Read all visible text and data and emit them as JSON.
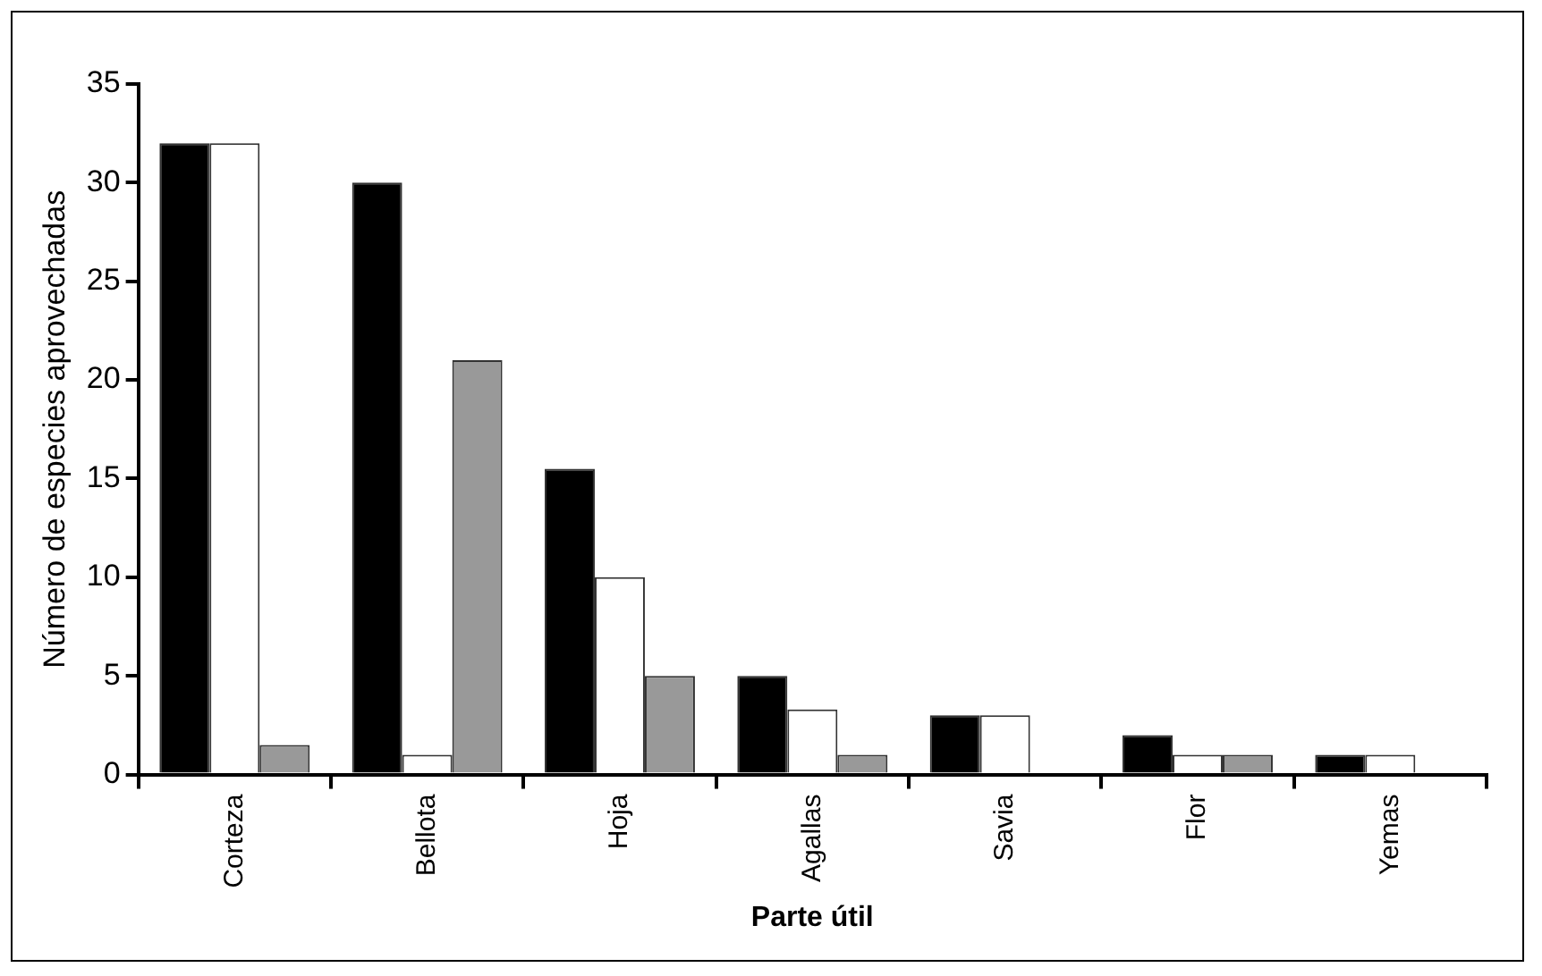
{
  "chart_data": {
    "type": "bar",
    "xlabel": "Parte útil",
    "ylabel": "Número de especies aprovechadas",
    "categories": [
      "Corteza",
      "Bellota",
      "Hoja",
      "Agallas",
      "Savia",
      "Flor",
      "Yemas"
    ],
    "series": [
      {
        "color": "#000000",
        "values": [
          32,
          30,
          15.5,
          5,
          3,
          2,
          1
        ]
      },
      {
        "color": "#ffffff",
        "values": [
          32,
          1,
          10,
          3.3,
          3,
          1,
          1
        ]
      },
      {
        "color": "#999999",
        "values": [
          1.5,
          21,
          5,
          1,
          null,
          1,
          null
        ]
      }
    ],
    "ylim": [
      0,
      35
    ],
    "yticks": [
      0,
      5,
      10,
      15,
      20,
      25,
      30,
      35
    ],
    "grid": false,
    "legend": false
  }
}
